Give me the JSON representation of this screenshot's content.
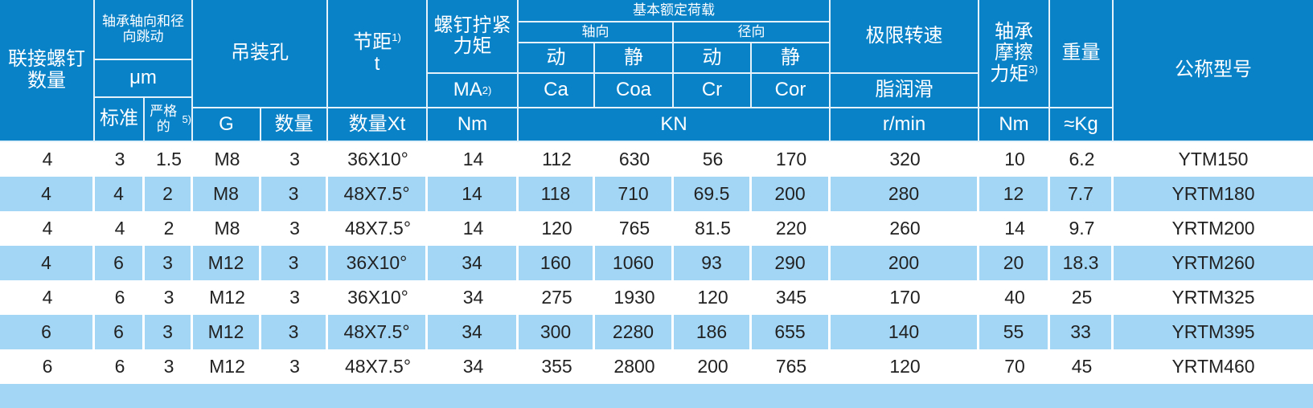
{
  "header": {
    "bolt_count": "联接螺钉数量",
    "runout": "轴承轴向和径向跳动",
    "runout_unit": "μm",
    "standard": "标准",
    "strict": "严格的",
    "strict_note": "5)",
    "lifting_holes": "吊装孔",
    "g": "G",
    "qty": "数量",
    "pitch": "节距",
    "pitch_note": "1)",
    "pitch_t": "t",
    "pitch_unit": "数量Xt",
    "torque": "螺钉拧紧力矩",
    "torque_ma": "MA",
    "torque_note": "2)",
    "torque_unit": "Nm",
    "load_rating": "基本额定荷载",
    "axial": "轴向",
    "radial": "径向",
    "dynamic": "动",
    "static": "静",
    "ca": "Ca",
    "coa": "Coa",
    "cr": "Cr",
    "cor": "Cor",
    "load_unit": "KN",
    "speed": "极限转速",
    "grease": "脂润滑",
    "speed_unit": "r/min",
    "friction": "轴承摩擦力矩",
    "friction_note": "3)",
    "friction_unit": "Nm",
    "weight": "重量",
    "weight_unit": "≈Kg",
    "model": "公称型号"
  },
  "rows": [
    [
      "4",
      "3",
      "1.5",
      "M8",
      "3",
      "36X10°",
      "14",
      "112",
      "630",
      "56",
      "170",
      "320",
      "10",
      "6.2",
      "YTM150"
    ],
    [
      "4",
      "4",
      "2",
      "M8",
      "3",
      "48X7.5°",
      "14",
      "118",
      "710",
      "69.5",
      "200",
      "280",
      "12",
      "7.7",
      "YRTM180"
    ],
    [
      "4",
      "4",
      "2",
      "M8",
      "3",
      "48X7.5°",
      "14",
      "120",
      "765",
      "81.5",
      "220",
      "260",
      "14",
      "9.7",
      "YRTM200"
    ],
    [
      "4",
      "6",
      "3",
      "M12",
      "3",
      "36X10°",
      "34",
      "160",
      "1060",
      "93",
      "290",
      "200",
      "20",
      "18.3",
      "YRTM260"
    ],
    [
      "4",
      "6",
      "3",
      "M12",
      "3",
      "36X10°",
      "34",
      "275",
      "1930",
      "120",
      "345",
      "170",
      "40",
      "25",
      "YRTM325"
    ],
    [
      "6",
      "6",
      "3",
      "M12",
      "3",
      "48X7.5°",
      "34",
      "300",
      "2280",
      "186",
      "655",
      "140",
      "55",
      "33",
      "YRTM395"
    ],
    [
      "6",
      "6",
      "3",
      "M12",
      "3",
      "48X7.5°",
      "34",
      "355",
      "2800",
      "200",
      "765",
      "120",
      "70",
      "45",
      "YRTM460"
    ]
  ],
  "colors": {
    "header": "#0a82c8",
    "alt_row": "#a3d6f5"
  }
}
